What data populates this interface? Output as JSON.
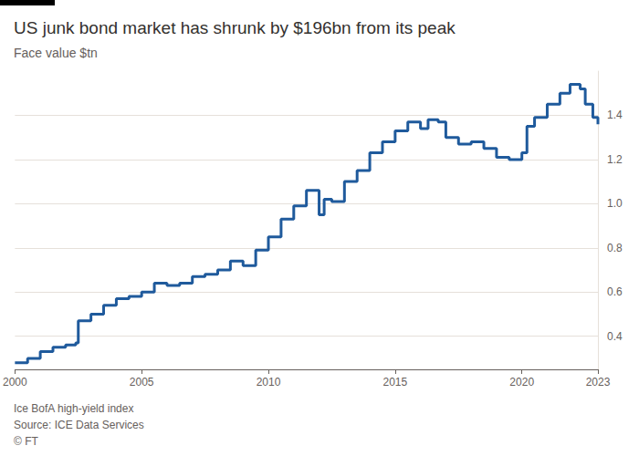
{
  "chart_data": {
    "type": "line",
    "title": "US junk bond market has shrunk by $196bn from its peak",
    "subtitle": "Face value $tn",
    "footnotes": [
      "Ice BofA high-yield index",
      "Source: ICE Data Services",
      "© FT"
    ],
    "x": [
      2000.0,
      2000.5,
      2001.0,
      2001.5,
      2002.0,
      2002.4,
      2002.5,
      2003.0,
      2003.5,
      2004.0,
      2004.5,
      2005.0,
      2005.5,
      2006.0,
      2006.5,
      2007.0,
      2007.5,
      2008.0,
      2008.5,
      2009.0,
      2009.5,
      2010.0,
      2010.5,
      2011.0,
      2011.5,
      2011.9,
      2012.0,
      2012.2,
      2012.5,
      2013.0,
      2013.5,
      2014.0,
      2014.5,
      2015.0,
      2015.5,
      2016.0,
      2016.3,
      2016.7,
      2017.0,
      2017.5,
      2018.0,
      2018.5,
      2019.0,
      2019.5,
      2020.0,
      2020.2,
      2020.5,
      2021.0,
      2021.5,
      2021.9,
      2022.3,
      2022.5,
      2022.8,
      2023.0
    ],
    "values": [
      0.28,
      0.3,
      0.33,
      0.35,
      0.36,
      0.37,
      0.47,
      0.5,
      0.54,
      0.57,
      0.58,
      0.6,
      0.64,
      0.63,
      0.64,
      0.67,
      0.68,
      0.7,
      0.74,
      0.72,
      0.79,
      0.85,
      0.93,
      0.99,
      1.06,
      1.06,
      0.95,
      1.02,
      1.01,
      1.1,
      1.15,
      1.23,
      1.28,
      1.33,
      1.37,
      1.34,
      1.38,
      1.37,
      1.3,
      1.27,
      1.28,
      1.25,
      1.21,
      1.2,
      1.23,
      1.35,
      1.39,
      1.45,
      1.5,
      1.54,
      1.52,
      1.45,
      1.39,
      1.36
    ],
    "color": "#1f5a9c",
    "line_style": "step",
    "xlim": [
      2000,
      2023
    ],
    "xticks": [
      2000,
      2005,
      2010,
      2015,
      2020,
      2023
    ],
    "ylim": [
      0.25,
      1.6
    ],
    "yticks": [
      0.4,
      0.6,
      0.8,
      {
        "value": 1,
        "label": "1.0"
      },
      1.2,
      1.4
    ],
    "grid": true
  }
}
